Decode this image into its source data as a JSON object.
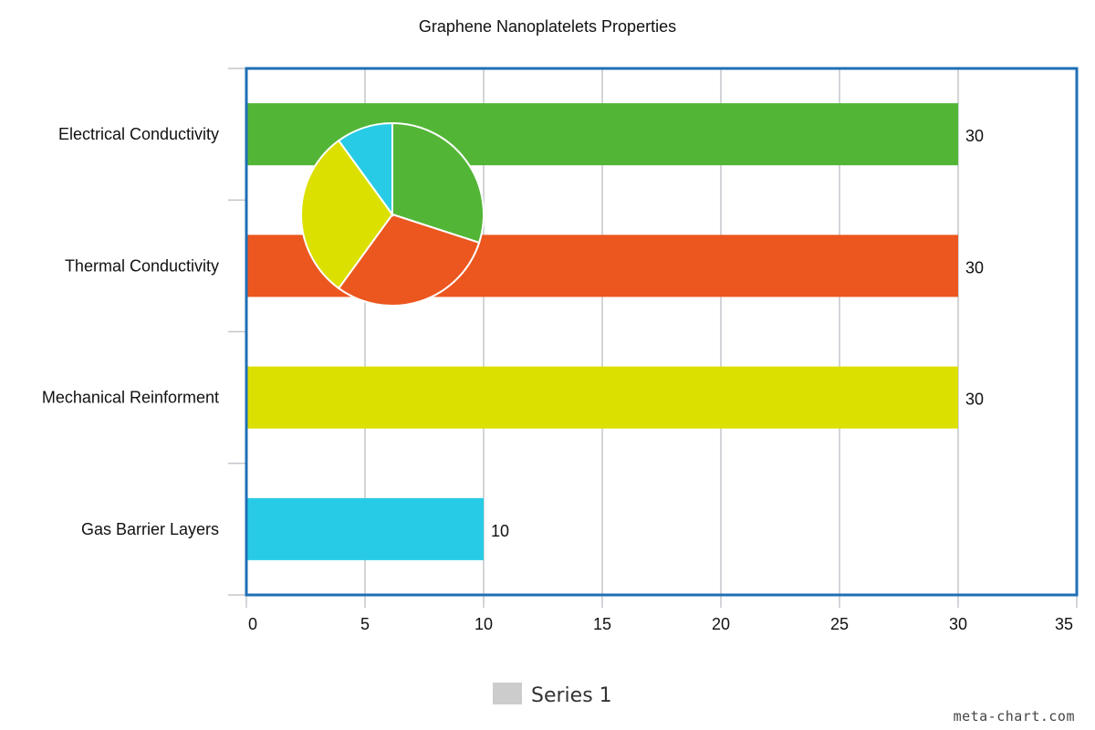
{
  "chart_data": {
    "type": "bar",
    "orientation": "horizontal",
    "title": "Graphene Nanoplatelets Properties",
    "categories": [
      "Electrical Conductivity",
      "Thermal Conductivity",
      "Mechanical Reinforment",
      "Gas Barrier Layers"
    ],
    "series": [
      {
        "name": "Series 1",
        "values": [
          30,
          30,
          30,
          10
        ]
      }
    ],
    "bar_colors": [
      "#52b536",
      "#ec561f",
      "#dce000",
      "#28cbe5"
    ],
    "xlabel": "",
    "ylabel": "",
    "xlim": [
      0,
      35
    ],
    "x_ticks": [
      0,
      5,
      10,
      15,
      20,
      25,
      30,
      35
    ],
    "grid": true,
    "legend": "bottom-center",
    "legend_swatch_color": "#cccccc",
    "pie_inset": {
      "values": [
        30,
        30,
        30,
        10
      ],
      "colors": [
        "#52b536",
        "#ec561f",
        "#dce000",
        "#28cbe5"
      ]
    }
  },
  "watermark": "meta-chart.com"
}
